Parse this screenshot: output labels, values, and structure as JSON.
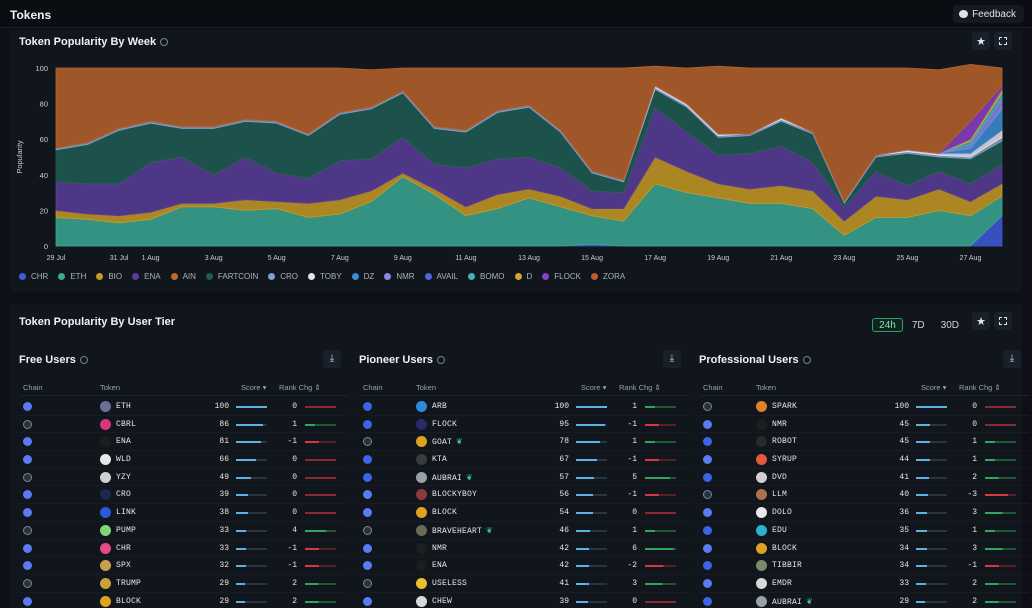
{
  "topbar": {
    "title": "Tokens",
    "feedback_label": "Feedback"
  },
  "popularity_panel": {
    "title": "Token Popularity By Week",
    "star": "★"
  },
  "chart_data": {
    "type": "area",
    "title": "Token Popularity By Week",
    "xlabel": "",
    "ylabel": "Popularity",
    "ylim": [
      0,
      100
    ],
    "yticks": [
      0,
      20,
      40,
      60,
      80,
      100
    ],
    "stacked": true,
    "grid": false,
    "legend_position": "bottom",
    "x": [
      "29 Jul",
      "30 Jul",
      "31 Jul",
      "1 Aug",
      "2 Aug",
      "3 Aug",
      "4 Aug",
      "5 Aug",
      "6 Aug",
      "7 Aug",
      "8 Aug",
      "9 Aug",
      "10 Aug",
      "11 Aug",
      "12 Aug",
      "13 Aug",
      "14 Aug",
      "15 Aug",
      "16 Aug",
      "17 Aug",
      "18 Aug",
      "19 Aug",
      "20 Aug",
      "21 Aug",
      "22 Aug",
      "23 Aug",
      "24 Aug",
      "25 Aug",
      "26 Aug",
      "27 Aug",
      "28 Aug"
    ],
    "xtick_labels": [
      "29 Jul",
      "31 Jul",
      "1 Aug",
      "3 Aug",
      "5 Aug",
      "7 Aug",
      "9 Aug",
      "11 Aug",
      "13 Aug",
      "15 Aug",
      "17 Aug",
      "19 Aug",
      "21 Aug",
      "23 Aug",
      "25 Aug",
      "27 Aug"
    ],
    "series": [
      {
        "name": "CHR",
        "color": "#3f5bd9",
        "values": [
          0,
          0,
          0,
          0,
          0,
          0,
          0,
          0,
          0,
          0,
          0,
          0,
          0,
          0,
          0,
          0,
          0,
          1,
          0,
          0,
          0,
          0,
          0,
          0,
          0,
          0,
          0,
          0,
          0,
          0,
          17
        ]
      },
      {
        "name": "ETH",
        "color": "#3aa893",
        "values": [
          16,
          15,
          13,
          15,
          22,
          22,
          20,
          21,
          16,
          18,
          25,
          39,
          29,
          17,
          21,
          27,
          22,
          16,
          14,
          35,
          30,
          27,
          24,
          24,
          21,
          6,
          16,
          16,
          20,
          17,
          11
        ]
      },
      {
        "name": "BIO",
        "color": "#c79a25",
        "values": [
          4,
          3,
          4,
          4,
          2,
          2,
          6,
          4,
          8,
          8,
          6,
          2,
          3,
          5,
          8,
          5,
          6,
          4,
          7,
          15,
          12,
          8,
          8,
          10,
          10,
          8,
          12,
          10,
          12,
          8,
          7
        ]
      },
      {
        "name": "ENA",
        "color": "#5a3d9a",
        "values": [
          16,
          17,
          18,
          28,
          26,
          16,
          24,
          16,
          14,
          22,
          18,
          20,
          14,
          22,
          20,
          18,
          16,
          10,
          9,
          28,
          22,
          16,
          20,
          22,
          16,
          8,
          14,
          8,
          10,
          10,
          11
        ]
      },
      {
        "name": "AIN",
        "color": "#c2682a",
        "values": [
          0,
          0,
          0,
          0,
          0,
          0,
          0,
          0,
          0,
          0,
          0,
          0,
          0,
          0,
          0,
          0,
          0,
          0,
          0,
          0,
          0,
          0,
          0,
          0,
          0,
          0,
          0,
          0,
          0,
          0,
          0
        ]
      },
      {
        "name": "FARTCOIN",
        "color": "#1f5c55",
        "values": [
          18,
          22,
          30,
          22,
          16,
          26,
          20,
          28,
          24,
          26,
          28,
          25,
          20,
          20,
          26,
          28,
          20,
          10,
          6,
          10,
          14,
          10,
          10,
          14,
          16,
          2,
          8,
          18,
          8,
          14,
          13
        ]
      },
      {
        "name": "CRO",
        "color": "#7fa0c8",
        "values": [
          1,
          1,
          1,
          1,
          1,
          1,
          1,
          1,
          1,
          1,
          1,
          1,
          1,
          1,
          1,
          1,
          1,
          1,
          1,
          1,
          1,
          1,
          1,
          1,
          1,
          1,
          1,
          1,
          1,
          1,
          2
        ]
      },
      {
        "name": "TOBY",
        "color": "#e9e0e8",
        "values": [
          0,
          0,
          0,
          0,
          0,
          0,
          0,
          0,
          0,
          0,
          0,
          0,
          0,
          0,
          0,
          0,
          0,
          0,
          0,
          1,
          1,
          1,
          0,
          1,
          0,
          0,
          0,
          1,
          1,
          2,
          4
        ]
      },
      {
        "name": "DZ",
        "color": "#3b8ed6",
        "values": [
          0,
          0,
          0,
          0,
          0,
          0,
          0,
          0,
          0,
          0,
          0,
          0,
          0,
          0,
          0,
          0,
          0,
          0,
          0,
          0,
          0,
          0,
          0,
          0,
          0,
          0,
          0,
          0,
          0,
          3,
          12
        ]
      },
      {
        "name": "NMR",
        "color": "#8c86e8",
        "values": [
          0,
          0,
          0,
          0,
          0,
          0,
          0,
          0,
          0,
          0,
          0,
          0,
          0,
          0,
          0,
          0,
          0,
          0,
          0,
          0,
          0,
          0,
          0,
          0,
          0,
          0,
          0,
          0,
          0,
          2,
          6
        ]
      },
      {
        "name": "AVAIL",
        "color": "#4a6ad8",
        "values": [
          0,
          0,
          0,
          0,
          0,
          0,
          0,
          0,
          0,
          0,
          0,
          0,
          0,
          0,
          0,
          0,
          0,
          0,
          0,
          0,
          0,
          0,
          0,
          0,
          0,
          0,
          0,
          0,
          0,
          0,
          0
        ]
      },
      {
        "name": "BOMO",
        "color": "#43b5b0",
        "values": [
          0,
          0,
          0,
          0,
          0,
          0,
          0,
          0,
          0,
          0,
          0,
          0,
          0,
          0,
          0,
          0,
          0,
          0,
          0,
          0,
          0,
          0,
          0,
          0,
          0,
          0,
          0,
          0,
          0,
          2,
          3
        ]
      },
      {
        "name": "D",
        "color": "#d7a52c",
        "values": [
          0,
          0,
          0,
          0,
          0,
          0,
          0,
          0,
          0,
          0,
          0,
          0,
          0,
          0,
          0,
          0,
          0,
          0,
          0,
          0,
          0,
          0,
          0,
          0,
          0,
          0,
          0,
          0,
          0,
          1,
          2
        ]
      },
      {
        "name": "FLOCK",
        "color": "#8b3fc6",
        "values": [
          0,
          0,
          0,
          0,
          0,
          0,
          0,
          0,
          0,
          0,
          0,
          0,
          0,
          0,
          0,
          0,
          0,
          0,
          0,
          0,
          0,
          0,
          0,
          0,
          0,
          0,
          0,
          0,
          0,
          10,
          2
        ]
      },
      {
        "name": "ZORA",
        "color": "#b8612b",
        "values": [
          45,
          42,
          34,
          30,
          33,
          33,
          29,
          30,
          37,
          25,
          21,
          13,
          33,
          35,
          24,
          21,
          35,
          58,
          63,
          11,
          20,
          38,
          37,
          28,
          36,
          75,
          49,
          46,
          47,
          32,
          10
        ]
      }
    ]
  },
  "tier_panel": {
    "title": "Token Popularity By User Tier",
    "ranges": [
      "24h",
      "7D",
      "30D"
    ],
    "active_range": "24h",
    "star": "★",
    "columns": {
      "chain": "Chain",
      "token": "Token",
      "score": "Score ▾",
      "rank": "Rank Chg ⇕"
    },
    "tiers": [
      {
        "title": "Free Users",
        "rows": [
          {
            "chain": "eth",
            "token": "ETH",
            "score": "100",
            "score_pct": 100,
            "rank": "0",
            "icon_color": "#6b6f9a"
          },
          {
            "chain": "sol",
            "token": "CBRL",
            "score": "86",
            "score_pct": 86,
            "rank": "1",
            "icon_color": "#d8357e"
          },
          {
            "chain": "eth",
            "token": "ENA",
            "score": "81",
            "score_pct": 81,
            "rank": "-1",
            "icon_color": "#1c1c1c"
          },
          {
            "chain": "eth",
            "token": "WLD",
            "score": "66",
            "score_pct": 66,
            "rank": "0",
            "icon_color": "#e8e8e8"
          },
          {
            "chain": "sol",
            "token": "YZY",
            "score": "49",
            "score_pct": 49,
            "rank": "0",
            "icon_color": "#d0d0d0"
          },
          {
            "chain": "eth",
            "token": "CRO",
            "score": "39",
            "score_pct": 39,
            "rank": "0",
            "icon_color": "#1a2a4a"
          },
          {
            "chain": "eth",
            "token": "LINK",
            "score": "38",
            "score_pct": 38,
            "rank": "0",
            "icon_color": "#2a5ada"
          },
          {
            "chain": "sol",
            "token": "PUMP",
            "score": "33",
            "score_pct": 33,
            "rank": "4",
            "icon_color": "#7ed67a"
          },
          {
            "chain": "eth",
            "token": "CHR",
            "score": "33",
            "score_pct": 33,
            "rank": "-1",
            "icon_color": "#e24a8a"
          },
          {
            "chain": "eth",
            "token": "SPX",
            "score": "32",
            "score_pct": 32,
            "rank": "-1",
            "icon_color": "#c8a050"
          },
          {
            "chain": "sol",
            "token": "TRUMP",
            "score": "29",
            "score_pct": 29,
            "rank": "2",
            "icon_color": "#c9a03a"
          },
          {
            "chain": "eth",
            "token": "BLOCK",
            "score": "29",
            "score_pct": 29,
            "rank": "2",
            "icon_color": "#e0a020"
          }
        ]
      },
      {
        "title": "Pioneer Users",
        "rows": [
          {
            "chain": "base",
            "token": "ARB",
            "score": "100",
            "score_pct": 100,
            "rank": "1",
            "icon_color": "#2d8ad9"
          },
          {
            "chain": "base",
            "token": "FLOCK",
            "score": "95",
            "score_pct": 95,
            "rank": "-1",
            "icon_color": "#2a2a6a"
          },
          {
            "chain": "sol",
            "token": "GOAT",
            "badge": "❦",
            "score": "78",
            "score_pct": 78,
            "rank": "1",
            "icon_color": "#e0a020"
          },
          {
            "chain": "base",
            "token": "KTA",
            "score": "67",
            "score_pct": 67,
            "rank": "-1",
            "icon_color": "#3a3a3a"
          },
          {
            "chain": "base",
            "token": "AUBRAI",
            "badge": "❦",
            "score": "57",
            "score_pct": 57,
            "rank": "5",
            "icon_color": "#9aa0a8"
          },
          {
            "chain": "eth",
            "token": "BLOCKYBOY",
            "score": "56",
            "score_pct": 56,
            "rank": "-1",
            "icon_color": "#8a3a3a"
          },
          {
            "chain": "eth",
            "token": "BLOCK",
            "score": "54",
            "score_pct": 54,
            "rank": "0",
            "icon_color": "#e0a020"
          },
          {
            "chain": "sol",
            "token": "BRAVEHEART",
            "badge": "❦",
            "score": "46",
            "score_pct": 46,
            "rank": "1",
            "icon_color": "#6a6a50"
          },
          {
            "chain": "eth",
            "token": "NMR",
            "score": "42",
            "score_pct": 42,
            "rank": "6",
            "icon_color": "#1e1e1e"
          },
          {
            "chain": "eth",
            "token": "ENA",
            "score": "42",
            "score_pct": 42,
            "rank": "-2",
            "icon_color": "#1c1c1c"
          },
          {
            "chain": "sol",
            "token": "USELESS",
            "score": "41",
            "score_pct": 41,
            "rank": "3",
            "icon_color": "#e8c030"
          },
          {
            "chain": "eth",
            "token": "CHEW",
            "score": "39",
            "score_pct": 39,
            "rank": "0",
            "icon_color": "#d8d8d8"
          }
        ]
      },
      {
        "title": "Professional Users",
        "rows": [
          {
            "chain": "sol",
            "token": "SPARK",
            "score": "100",
            "score_pct": 100,
            "rank": "0",
            "icon_color": "#e0802a"
          },
          {
            "chain": "eth",
            "token": "NMR",
            "score": "45",
            "score_pct": 45,
            "rank": "0",
            "icon_color": "#1e1e1e"
          },
          {
            "chain": "base",
            "token": "ROBOT",
            "score": "45",
            "score_pct": 45,
            "rank": "1",
            "icon_color": "#2a2a2a"
          },
          {
            "chain": "eth",
            "token": "SYRUP",
            "score": "44",
            "score_pct": 44,
            "rank": "1",
            "icon_color": "#e25a3a"
          },
          {
            "chain": "base",
            "token": "DVD",
            "score": "41",
            "score_pct": 41,
            "rank": "2",
            "icon_color": "#d0d0d0"
          },
          {
            "chain": "sol",
            "token": "LLM",
            "score": "40",
            "score_pct": 40,
            "rank": "-3",
            "icon_color": "#b07050"
          },
          {
            "chain": "eth",
            "token": "DOLO",
            "score": "36",
            "score_pct": 36,
            "rank": "3",
            "icon_color": "#e8e8e8"
          },
          {
            "chain": "base",
            "token": "EDU",
            "score": "35",
            "score_pct": 35,
            "rank": "1",
            "icon_color": "#2ab0d0"
          },
          {
            "chain": "eth",
            "token": "BLOCK",
            "score": "34",
            "score_pct": 34,
            "rank": "3",
            "icon_color": "#e0a020"
          },
          {
            "chain": "base",
            "token": "TIBBIR",
            "score": "34",
            "score_pct": 34,
            "rank": "-1",
            "icon_color": "#7a8a6a"
          },
          {
            "chain": "eth",
            "token": "EMDR",
            "score": "33",
            "score_pct": 33,
            "rank": "2",
            "icon_color": "#d8d8d8"
          },
          {
            "chain": "base",
            "token": "AUBRAI",
            "badge": "❦",
            "score": "29",
            "score_pct": 29,
            "rank": "2",
            "icon_color": "#9aa0a8"
          }
        ]
      }
    ]
  },
  "colors": {
    "positive": "#2fa65f",
    "negative": "#d23a42",
    "score_bar": "#5db3e6"
  }
}
